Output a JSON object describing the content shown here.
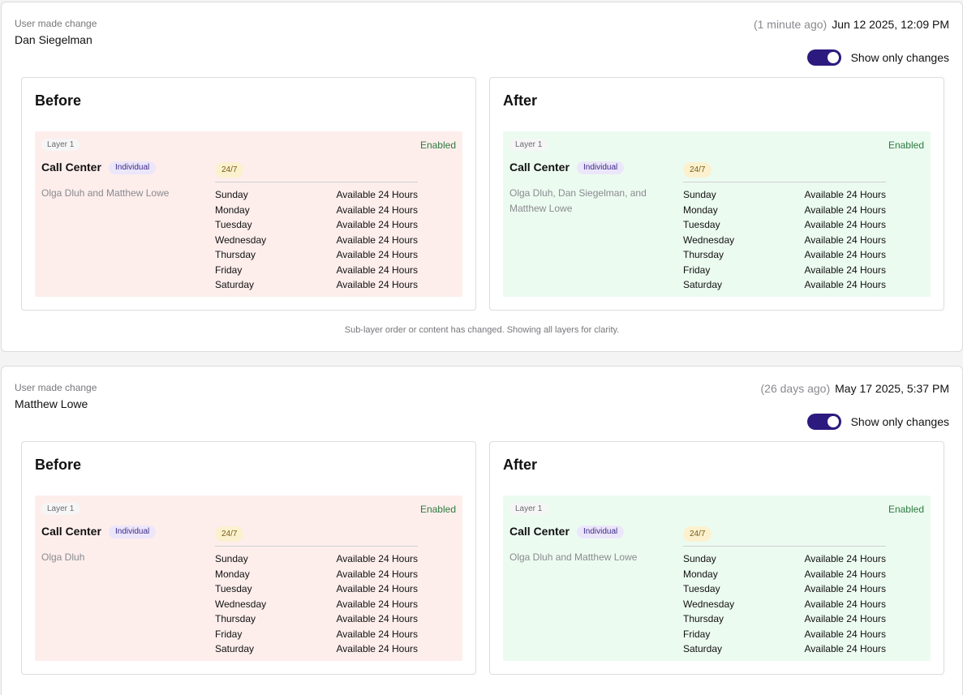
{
  "entries": [
    {
      "made_label": "User made change",
      "user": "Dan Siegelman",
      "relative_time": "(1 minute ago)",
      "timestamp": "Jun 12 2025, 12:09 PM",
      "toggle_label": "Show only changes",
      "toggle_on": true,
      "footnote": "Sub-layer order or content has changed. Showing all layers for clarity.",
      "before": {
        "title": "Before",
        "layer_label": "Layer 1",
        "status": "Enabled",
        "layer_name": "Call Center",
        "type": "Individual",
        "members": "Olga Dluh and Matthew Lowe",
        "schedule_label": "24/7",
        "days": [
          {
            "day": "Sunday",
            "hours": "Available 24 Hours"
          },
          {
            "day": "Monday",
            "hours": "Available 24 Hours"
          },
          {
            "day": "Tuesday",
            "hours": "Available 24 Hours"
          },
          {
            "day": "Wednesday",
            "hours": "Available 24 Hours"
          },
          {
            "day": "Thursday",
            "hours": "Available 24 Hours"
          },
          {
            "day": "Friday",
            "hours": "Available 24 Hours"
          },
          {
            "day": "Saturday",
            "hours": "Available 24 Hours"
          }
        ]
      },
      "after": {
        "title": "After",
        "layer_label": "Layer 1",
        "status": "Enabled",
        "layer_name": "Call Center",
        "type": "Individual",
        "members": "Olga Dluh, Dan Siegelman, and Matthew Lowe",
        "schedule_label": "24/7",
        "days": [
          {
            "day": "Sunday",
            "hours": "Available 24 Hours"
          },
          {
            "day": "Monday",
            "hours": "Available 24 Hours"
          },
          {
            "day": "Tuesday",
            "hours": "Available 24 Hours"
          },
          {
            "day": "Wednesday",
            "hours": "Available 24 Hours"
          },
          {
            "day": "Thursday",
            "hours": "Available 24 Hours"
          },
          {
            "day": "Friday",
            "hours": "Available 24 Hours"
          },
          {
            "day": "Saturday",
            "hours": "Available 24 Hours"
          }
        ]
      }
    },
    {
      "made_label": "User made change",
      "user": "Matthew Lowe",
      "relative_time": "(26 days ago)",
      "timestamp": "May 17 2025, 5:37 PM",
      "toggle_label": "Show only changes",
      "toggle_on": true,
      "before": {
        "title": "Before",
        "layer_label": "Layer 1",
        "status": "Enabled",
        "layer_name": "Call Center",
        "type": "Individual",
        "members": "Olga Dluh",
        "schedule_label": "24/7",
        "days": [
          {
            "day": "Sunday",
            "hours": "Available 24 Hours"
          },
          {
            "day": "Monday",
            "hours": "Available 24 Hours"
          },
          {
            "day": "Tuesday",
            "hours": "Available 24 Hours"
          },
          {
            "day": "Wednesday",
            "hours": "Available 24 Hours"
          },
          {
            "day": "Thursday",
            "hours": "Available 24 Hours"
          },
          {
            "day": "Friday",
            "hours": "Available 24 Hours"
          },
          {
            "day": "Saturday",
            "hours": "Available 24 Hours"
          }
        ]
      },
      "after": {
        "title": "After",
        "layer_label": "Layer 1",
        "status": "Enabled",
        "layer_name": "Call Center",
        "type": "Individual",
        "members": "Olga Dluh and Matthew Lowe",
        "schedule_label": "24/7",
        "days": [
          {
            "day": "Sunday",
            "hours": "Available 24 Hours"
          },
          {
            "day": "Monday",
            "hours": "Available 24 Hours"
          },
          {
            "day": "Tuesday",
            "hours": "Available 24 Hours"
          },
          {
            "day": "Wednesday",
            "hours": "Available 24 Hours"
          },
          {
            "day": "Thursday",
            "hours": "Available 24 Hours"
          },
          {
            "day": "Friday",
            "hours": "Available 24 Hours"
          },
          {
            "day": "Saturday",
            "hours": "Available 24 Hours"
          }
        ]
      }
    }
  ]
}
